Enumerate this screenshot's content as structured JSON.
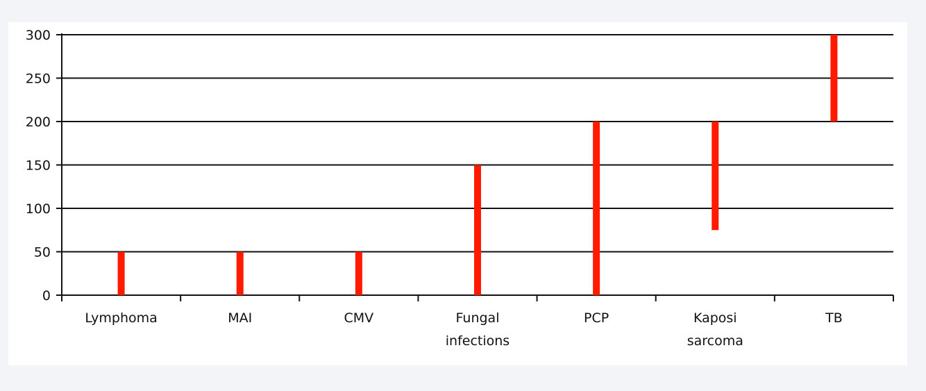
{
  "chart_data": {
    "type": "range_bar",
    "categories": [
      [
        "Lymphoma"
      ],
      [
        "MAI"
      ],
      [
        "CMV"
      ],
      [
        "Fungal",
        "infections"
      ],
      [
        "PCP"
      ],
      [
        "Kaposi",
        "sarcoma"
      ],
      [
        "TB"
      ]
    ],
    "ranges": [
      [
        0,
        50
      ],
      [
        0,
        50
      ],
      [
        0,
        50
      ],
      [
        0,
        150
      ],
      [
        0,
        200
      ],
      [
        75,
        200
      ],
      [
        200,
        300
      ]
    ],
    "yticks": [
      0,
      50,
      100,
      150,
      200,
      250,
      300
    ],
    "ylim": [
      0,
      300
    ],
    "grid": true,
    "bar_color": "#ff1a00",
    "title": "",
    "xlabel": "",
    "ylabel": ""
  }
}
